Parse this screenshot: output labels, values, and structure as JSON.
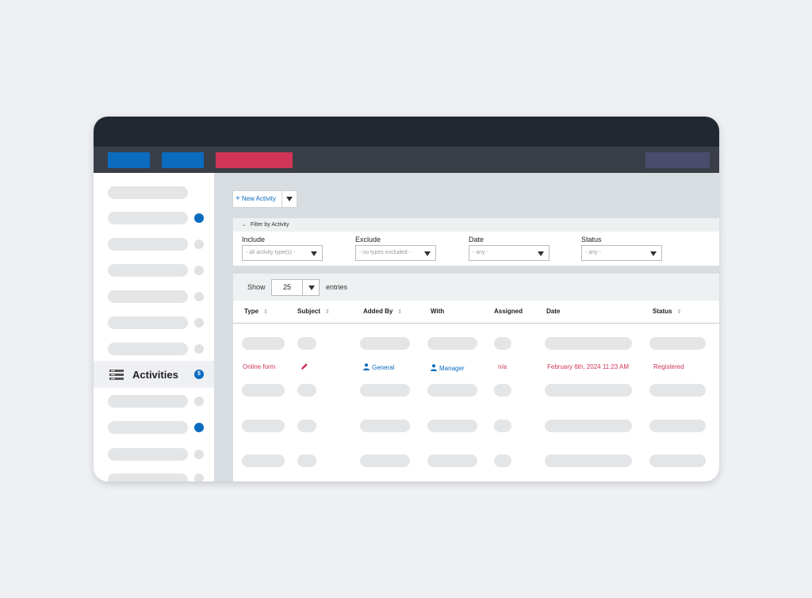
{
  "colors": {
    "titlebar": "#222831",
    "toolbar": "#393e47",
    "primary": "#0b6bbf",
    "accent": "#d03557",
    "muted": "#4a4c6d",
    "placeholder": "#e4e5e7"
  },
  "sidebar": {
    "active_item": {
      "label": "Activities",
      "badge": "5",
      "icon": "list-stack-icon"
    }
  },
  "actions": {
    "new_activity": "New Activity",
    "plus": "+"
  },
  "filter": {
    "title": "Filter by Activity",
    "include": {
      "label": "Include",
      "placeholder": "- all activity type(s) -"
    },
    "exclude": {
      "label": "Exclude",
      "placeholder": "- no types excluded -"
    },
    "date": {
      "label": "Date",
      "placeholder": "- any -"
    },
    "status": {
      "label": "Status",
      "placeholder": "- any -"
    }
  },
  "table": {
    "show_label": "Show",
    "page_size": "25",
    "entries_label": "entries",
    "columns": [
      "Type",
      "Subject",
      "Added By",
      "With",
      "Assigned",
      "Date",
      "Status"
    ],
    "row": {
      "type": "Online form",
      "added_by": "General",
      "with": "Manager",
      "assigned": "n/a",
      "date": "February 6th, 2024 11:23 AM",
      "status": "Registered"
    }
  }
}
